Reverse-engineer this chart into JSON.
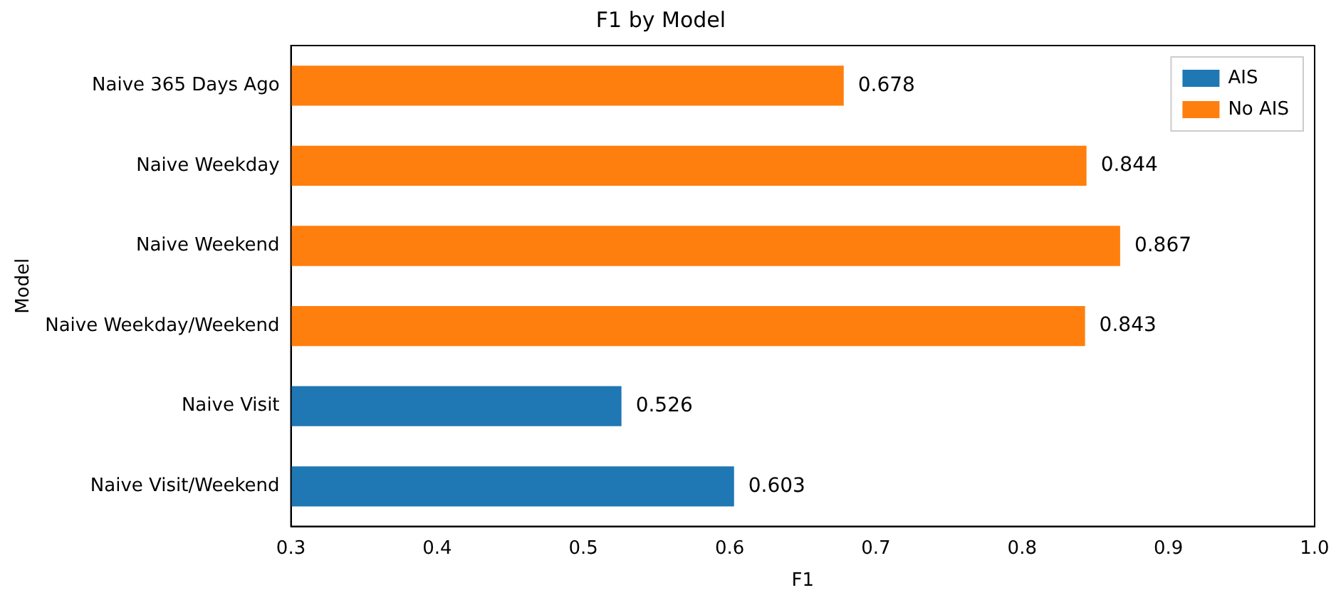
{
  "chart_data": {
    "type": "bar",
    "orientation": "horizontal",
    "title": "F1 by Model",
    "xlabel": "F1",
    "ylabel": "Model",
    "categories": [
      "Naive 365 Days Ago",
      "Naive Weekday",
      "Naive Weekend",
      "Naive Weekday/Weekend",
      "Naive Visit",
      "Naive Visit/Weekend"
    ],
    "series": [
      {
        "name": "AIS",
        "color": "#1f77b4",
        "values": [
          null,
          null,
          null,
          null,
          0.526,
          0.603
        ]
      },
      {
        "name": "No AIS",
        "color": "#ff7f0e",
        "values": [
          0.678,
          0.844,
          0.867,
          0.843,
          null,
          null
        ]
      }
    ],
    "xlim": [
      0.3,
      1.0
    ],
    "xticks": [
      0.3,
      0.4,
      0.5,
      0.6,
      0.7,
      0.8,
      0.9,
      {
        "value": 1,
        "label": "1.0"
      }
    ],
    "data_labels": true,
    "legend": "top right",
    "grid": false
  }
}
